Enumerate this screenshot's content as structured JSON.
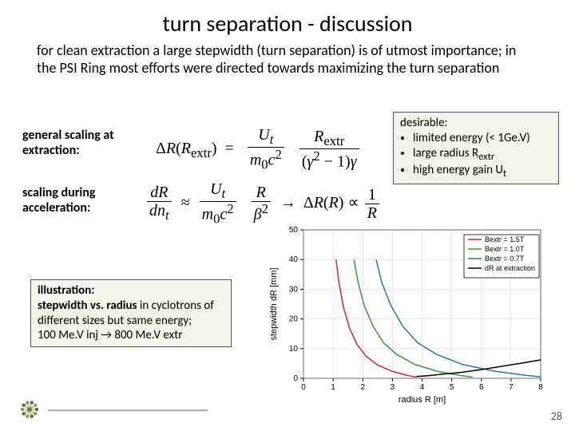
{
  "title": "turn separation - discussion",
  "intro": "for clean extraction a large stepwidth (turn separation) is of utmost importance; in the PSI Ring most efforts were directed towards maximizing the turn separation",
  "label1": "general scaling at extraction:",
  "label2": "scaling during acceleration:",
  "desirable": {
    "heading": "desirable:",
    "items": [
      "limited energy (< 1Ge.V)",
      "large radius R<sub>extr</sub>",
      "high energy gain U<sub>t</sub>"
    ]
  },
  "illustration": {
    "heading": "illustration:",
    "line2": "stepwidth vs. radius",
    "line3": " in cyclotrons of different sizes but same energy;",
    "line4": "100 Me.V inj → 800 Me.V extr"
  },
  "pagenum": "28",
  "chart": {
    "type": "line",
    "background_color": "#ffffff",
    "plot_bg": "#ffffff",
    "grid_color": "#d0d0d0",
    "axis_color": "#000000",
    "xlabel": "radius R [m]",
    "ylabel": "stepwidth dR [mm]",
    "label_fontsize": 11,
    "tick_fontsize": 10,
    "xlim": [
      0,
      8
    ],
    "ylim": [
      0,
      50
    ],
    "xtick_step": 1,
    "ytick_step": 10,
    "legend_position": "top-right",
    "legend_border": "#000000",
    "series": [
      {
        "name": "Bextr = 1.5T",
        "color": "#d62728",
        "width": 1.5,
        "points": [
          [
            1.1,
            40.0
          ],
          [
            1.2,
            32.0
          ],
          [
            1.35,
            24.0
          ],
          [
            1.55,
            17.0
          ],
          [
            1.8,
            11.5
          ],
          [
            2.1,
            7.5
          ],
          [
            2.5,
            4.5
          ],
          [
            3.0,
            2.3
          ],
          [
            3.5,
            1.0
          ],
          [
            3.8,
            0.4
          ]
        ]
      },
      {
        "name": "Bextr = 1.0T",
        "color": "#2ca02c",
        "width": 1.5,
        "points": [
          [
            1.7,
            40.0
          ],
          [
            1.85,
            32.0
          ],
          [
            2.05,
            24.5
          ],
          [
            2.35,
            17.5
          ],
          [
            2.7,
            12.0
          ],
          [
            3.15,
            8.0
          ],
          [
            3.75,
            4.7
          ],
          [
            4.5,
            2.4
          ],
          [
            5.25,
            1.0
          ],
          [
            5.7,
            0.4
          ]
        ]
      },
      {
        "name": "Bextr = 0.7T",
        "color": "#1f77b4",
        "width": 1.5,
        "points": [
          [
            2.45,
            40.0
          ],
          [
            2.65,
            32.0
          ],
          [
            2.95,
            24.5
          ],
          [
            3.35,
            17.5
          ],
          [
            3.85,
            12.0
          ],
          [
            4.5,
            8.0
          ],
          [
            5.35,
            4.7
          ],
          [
            6.45,
            2.4
          ],
          [
            7.5,
            1.0
          ],
          [
            8.0,
            0.5
          ]
        ]
      },
      {
        "name": "dR at extraction",
        "color": "#000000",
        "width": 1.5,
        "points": [
          [
            3.8,
            0.6
          ],
          [
            4.2,
            0.9
          ],
          [
            4.7,
            1.4
          ],
          [
            5.3,
            2.0
          ],
          [
            5.9,
            2.8
          ],
          [
            6.6,
            3.9
          ],
          [
            7.3,
            5.0
          ],
          [
            8.0,
            6.2
          ]
        ]
      }
    ]
  }
}
